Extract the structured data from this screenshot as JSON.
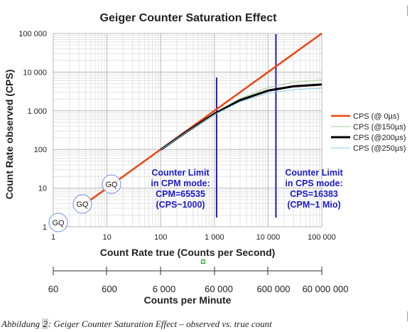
{
  "chart_data": {
    "type": "line",
    "title": "Geiger Counter Saturation Effect",
    "xlabel": "Count Rate true (Counts per Second)",
    "ylabel": "Count Rate observed (CPS)",
    "xscale": "log",
    "yscale": "log",
    "xlim": [
      1,
      100000
    ],
    "ylim": [
      1,
      100000
    ],
    "x_tick_labels": [
      "1",
      "10",
      "100",
      "1 000",
      "10 000",
      "100 000"
    ],
    "y_tick_labels": [
      "1",
      "10",
      "100",
      "1 000",
      "10 000",
      "100 000"
    ],
    "grid": true,
    "legend_position": "right",
    "series": [
      {
        "name": "CPS (@ 0µs)",
        "color": "#ee4411",
        "dead_time_us": 0,
        "x": [
          3.5,
          100000
        ],
        "y": [
          3.5,
          100000
        ]
      },
      {
        "name": "CPS (@150µs)",
        "color": "#a8c898",
        "dead_time_us": 150,
        "x": [
          100,
          300,
          1000,
          3000,
          10000,
          30000,
          100000
        ],
        "y": [
          98.5,
          287,
          870,
          2069,
          4000,
          5479,
          6250
        ]
      },
      {
        "name": "CPS (@200µs)",
        "color": "#000000",
        "dead_time_us": 200,
        "x": [
          100,
          300,
          1000,
          3000,
          10000,
          30000,
          100000
        ],
        "y": [
          98,
          283,
          833,
          1875,
          3333,
          4286,
          4762
        ]
      },
      {
        "name": "CPS (@250µs)",
        "color": "#88c8e8",
        "dead_time_us": 250,
        "x": [
          100,
          300,
          1000,
          3000,
          10000,
          30000,
          100000
        ],
        "y": [
          97.6,
          279,
          800,
          1714,
          2857,
          3529,
          3846
        ]
      }
    ],
    "vertical_lines": [
      {
        "x": 1100,
        "color": "#1a1acc"
      },
      {
        "x": 14000,
        "color": "#1a1acc"
      }
    ],
    "annotations": [
      {
        "lines": [
          "Counter Limit",
          "in CPM mode:",
          "CPM=65535",
          "(CPS~1000)"
        ],
        "color": "#1a1acc"
      },
      {
        "lines": [
          "Counter Limit",
          "in CPS mode:",
          "CPS=16383",
          "(CPM~1 Mio)"
        ],
        "color": "#1a1acc"
      }
    ],
    "gq_markers": [
      {
        "label": "GQ",
        "x": 1,
        "y": 1
      },
      {
        "label": "GQ",
        "x": 3.5,
        "y": 3.5
      },
      {
        "label": "GQ",
        "x": 11,
        "y": 11
      }
    ],
    "secondary_axis": {
      "title": "Counts per Minute",
      "tick_labels": [
        "60",
        "600",
        "6 000",
        "60 000",
        "600 000",
        "60 000 000"
      ]
    }
  },
  "caption": {
    "prefix": "Abbildung ",
    "number": "2",
    "text": ": Geiger Counter Saturation Effect – observed vs. true count"
  }
}
